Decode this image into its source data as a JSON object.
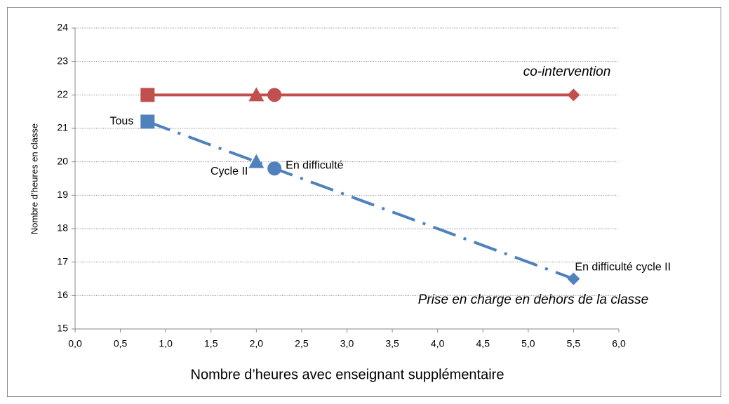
{
  "chart_data": {
    "type": "line",
    "x_label": "Nombre d’heures avec enseignant supplémentaire",
    "y_label": "Nombre d’heures en classe",
    "x": [
      0.8,
      2,
      2.2,
      5.5
    ],
    "markers": [
      "square",
      "triangle",
      "circle",
      "diamond"
    ],
    "series": [
      {
        "name": "co-intervention",
        "color": "#c0504d",
        "line_style": "solid",
        "values": [
          22,
          22,
          22,
          22
        ]
      },
      {
        "name": "Prise en charge en dehors de la classe",
        "color": "#4f81bd",
        "line_style": "dashdot",
        "values": [
          21.2,
          20,
          19.8,
          16.5
        ],
        "point_labels": [
          "Tous",
          "Cycle II",
          "En difficulté",
          "En difficulté cycle II"
        ]
      }
    ],
    "xlim": [
      0,
      6
    ],
    "xticks": [
      {
        "value": 0,
        "label": "0,0"
      },
      {
        "value": 0.5,
        "label": "0,5"
      },
      {
        "value": 1,
        "label": "1,0"
      },
      {
        "value": 1.5,
        "label": "1,5"
      },
      {
        "value": 2,
        "label": "2,0"
      },
      {
        "value": 2.5,
        "label": "2,5"
      },
      {
        "value": 3,
        "label": "3,0"
      },
      {
        "value": 3.5,
        "label": "3,5"
      },
      {
        "value": 4,
        "label": "4,0"
      },
      {
        "value": 4.5,
        "label": "4,5"
      },
      {
        "value": 5,
        "label": "5,0"
      },
      {
        "value": 5.5,
        "label": "5,5"
      },
      {
        "value": 6,
        "label": "6,0"
      }
    ],
    "ylim": [
      15,
      24
    ],
    "yticks": [
      15,
      16,
      17,
      18,
      19,
      20,
      21,
      22,
      23,
      24
    ],
    "grid": true
  }
}
